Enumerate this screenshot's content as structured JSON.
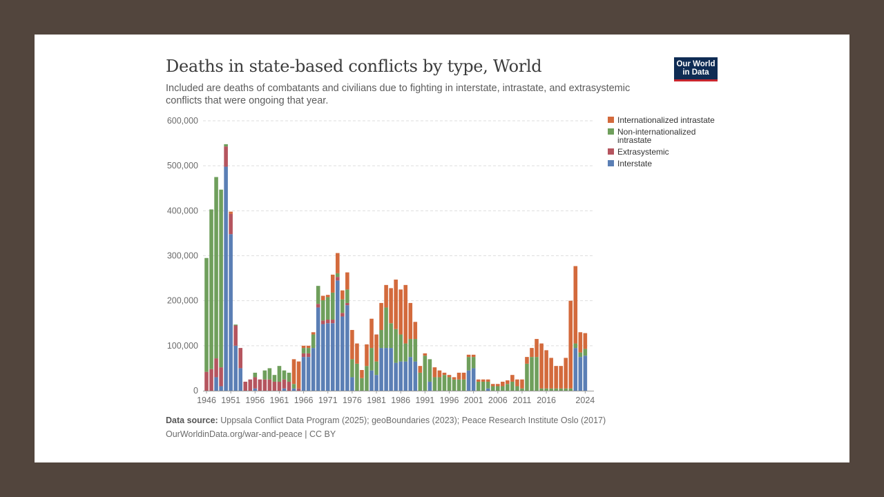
{
  "header": {
    "title": "Deaths in state-based conflicts by type, World",
    "subtitle": "Included are deaths of combatants and civilians due to fighting in interstate, intrastate, and extrasystemic conflicts that were ongoing that year.",
    "logo_line1": "Our World",
    "logo_line2": "in Data"
  },
  "footer": {
    "source_label": "Data source:",
    "source_text": "Uppsala Conflict Data Program (2025); geoBoundaries (2023); Peace Research Institute Oslo (2017)",
    "link_text": "OurWorldinData.org/war-and-peace | CC BY"
  },
  "colors": {
    "interstate": "#5b7fb5",
    "extrasystemic": "#b5555f",
    "non_internationalized": "#6f9f5c",
    "internationalized": "#d36a3c",
    "background": "#52453d"
  },
  "chart_data": {
    "type": "bar",
    "stacked": true,
    "title": "Deaths in state-based conflicts by type, World",
    "ylim": [
      0,
      600000
    ],
    "yticks": [
      0,
      100000,
      200000,
      300000,
      400000,
      500000,
      600000
    ],
    "ytick_labels": [
      "0",
      "100,000",
      "200,000",
      "300,000",
      "400,000",
      "500,000",
      "600,000"
    ],
    "xtick_labels": [
      "1946",
      "1951",
      "1956",
      "1961",
      "1966",
      "1971",
      "1976",
      "1981",
      "1986",
      "1991",
      "1996",
      "2001",
      "2006",
      "2011",
      "2016",
      "2024"
    ],
    "grid": true,
    "legend_position": "right",
    "legend": [
      "Internationalized intrastate",
      "Non-internationalized intrastate",
      "Extrasystemic",
      "Interstate"
    ],
    "legend_label_lines": [
      [
        "Internationalized intrastate"
      ],
      [
        "Non-internationalized",
        "intrastate"
      ],
      [
        "Extrasystemic"
      ],
      [
        "Interstate"
      ]
    ],
    "categories": [
      1946,
      1947,
      1948,
      1949,
      1950,
      1951,
      1952,
      1953,
      1954,
      1955,
      1956,
      1957,
      1958,
      1959,
      1960,
      1961,
      1962,
      1963,
      1964,
      1965,
      1966,
      1967,
      1968,
      1969,
      1970,
      1971,
      1972,
      1973,
      1974,
      1975,
      1976,
      1977,
      1978,
      1979,
      1980,
      1981,
      1982,
      1983,
      1984,
      1985,
      1986,
      1987,
      1988,
      1989,
      1990,
      1991,
      1992,
      1993,
      1994,
      1995,
      1996,
      1997,
      1998,
      1999,
      2000,
      2001,
      2002,
      2003,
      2004,
      2005,
      2006,
      2007,
      2008,
      2009,
      2010,
      2011,
      2012,
      2013,
      2014,
      2015,
      2016,
      2017,
      2018,
      2019,
      2020,
      2021,
      2022,
      2023,
      2024
    ],
    "series": [
      {
        "name": "Interstate",
        "values": [
          0,
          0,
          30000,
          10000,
          498000,
          348000,
          100000,
          50000,
          0,
          0,
          5000,
          0,
          0,
          0,
          0,
          0,
          5000,
          0,
          5000,
          0,
          75000,
          75000,
          95000,
          185000,
          148000,
          150000,
          150000,
          245000,
          165000,
          190000,
          30000,
          0,
          0,
          0,
          45000,
          35000,
          95000,
          95000,
          95000,
          62000,
          65000,
          65000,
          75000,
          65000,
          0,
          0,
          20000,
          0,
          0,
          0,
          0,
          0,
          0,
          0,
          45000,
          50000,
          0,
          0,
          5000,
          0,
          0,
          0,
          0,
          0,
          0,
          0,
          0,
          0,
          0,
          0,
          0,
          0,
          0,
          0,
          0,
          0,
          95000,
          75000,
          78000
        ]
      },
      {
        "name": "Extrasystemic",
        "values": [
          42000,
          48000,
          42000,
          42000,
          45000,
          45000,
          45000,
          45000,
          20000,
          25000,
          25000,
          25000,
          25000,
          25000,
          20000,
          20000,
          20000,
          20000,
          0,
          5000,
          8000,
          8000,
          0,
          8000,
          8000,
          8000,
          8000,
          8000,
          8000,
          5000,
          0,
          0,
          0,
          0,
          0,
          0,
          0,
          0,
          0,
          0,
          0,
          0,
          0,
          0,
          0,
          0,
          0,
          0,
          0,
          0,
          0,
          0,
          0,
          0,
          0,
          0,
          0,
          0,
          0,
          0,
          0,
          0,
          0,
          0,
          0,
          0,
          0,
          0,
          0,
          0,
          0,
          0,
          0,
          0,
          0,
          0,
          0,
          0,
          0
        ]
      },
      {
        "name": "Non-internationalized intrastate",
        "values": [
          253000,
          355000,
          403000,
          395000,
          5000,
          0,
          2000,
          0,
          0,
          0,
          10000,
          0,
          20000,
          25000,
          15000,
          35000,
          20000,
          20000,
          10000,
          0,
          12000,
          12000,
          30000,
          40000,
          45000,
          50000,
          60000,
          8000,
          30000,
          30000,
          40000,
          60000,
          28000,
          55000,
          50000,
          30000,
          40000,
          90000,
          55000,
          75000,
          60000,
          40000,
          40000,
          50000,
          40000,
          78000,
          50000,
          30000,
          30000,
          35000,
          30000,
          25000,
          25000,
          25000,
          30000,
          25000,
          20000,
          20000,
          15000,
          10000,
          10000,
          10000,
          15000,
          20000,
          10000,
          5000,
          60000,
          75000,
          75000,
          5000,
          5000,
          5000,
          5000,
          5000,
          5000,
          5000,
          10000,
          10000,
          15000
        ]
      },
      {
        "name": "Internationalized intrastate",
        "values": [
          0,
          0,
          0,
          0,
          0,
          5000,
          0,
          0,
          0,
          0,
          0,
          0,
          0,
          0,
          0,
          0,
          0,
          0,
          55000,
          60000,
          5000,
          5000,
          5000,
          0,
          10000,
          5000,
          40000,
          45000,
          20000,
          38000,
          65000,
          45000,
          18000,
          48000,
          65000,
          60000,
          60000,
          50000,
          78000,
          110000,
          100000,
          130000,
          80000,
          38000,
          15000,
          5000,
          0,
          22000,
          15000,
          5000,
          5000,
          5000,
          15000,
          15000,
          5000,
          5000,
          5000,
          5000,
          5000,
          5000,
          5000,
          10000,
          8000,
          15000,
          15000,
          20000,
          15000,
          20000,
          40000,
          100000,
          85000,
          68000,
          50000,
          50000,
          68000,
          195000,
          172000,
          45000,
          35000
        ]
      }
    ]
  }
}
